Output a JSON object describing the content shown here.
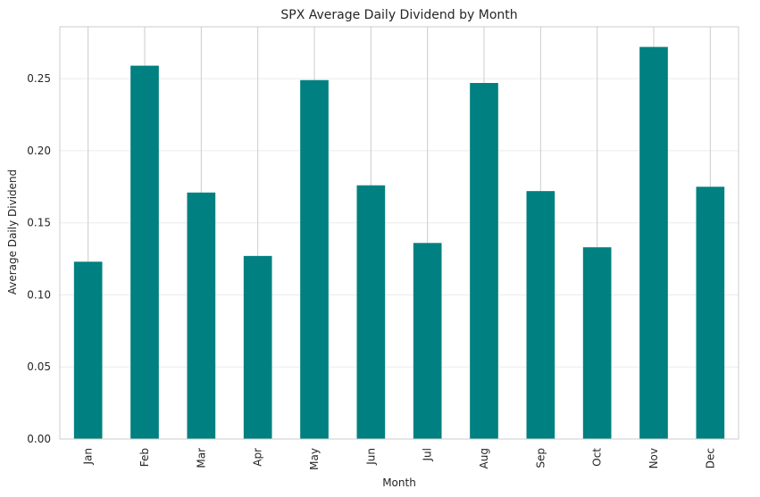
{
  "chart_data": {
    "type": "bar",
    "title": "SPX Average Daily Dividend by Month",
    "xlabel": "Month",
    "ylabel": "Average Daily Dividend",
    "categories": [
      "Jan",
      "Feb",
      "Mar",
      "Apr",
      "May",
      "Jun",
      "Jul",
      "Aug",
      "Sep",
      "Oct",
      "Nov",
      "Dec"
    ],
    "values": [
      0.123,
      0.259,
      0.171,
      0.127,
      0.249,
      0.176,
      0.136,
      0.247,
      0.172,
      0.133,
      0.272,
      0.175
    ],
    "ylim": [
      0,
      0.286
    ],
    "yticks": [
      "0.00",
      "0.05",
      "0.10",
      "0.15",
      "0.20",
      "0.25"
    ],
    "ytick_values": [
      0,
      0.05,
      0.1,
      0.15,
      0.2,
      0.25
    ],
    "bar_color": "#008080",
    "grid": true,
    "grid_color": "#cccccc",
    "frame_color": "#cccccc",
    "legend": "none"
  }
}
